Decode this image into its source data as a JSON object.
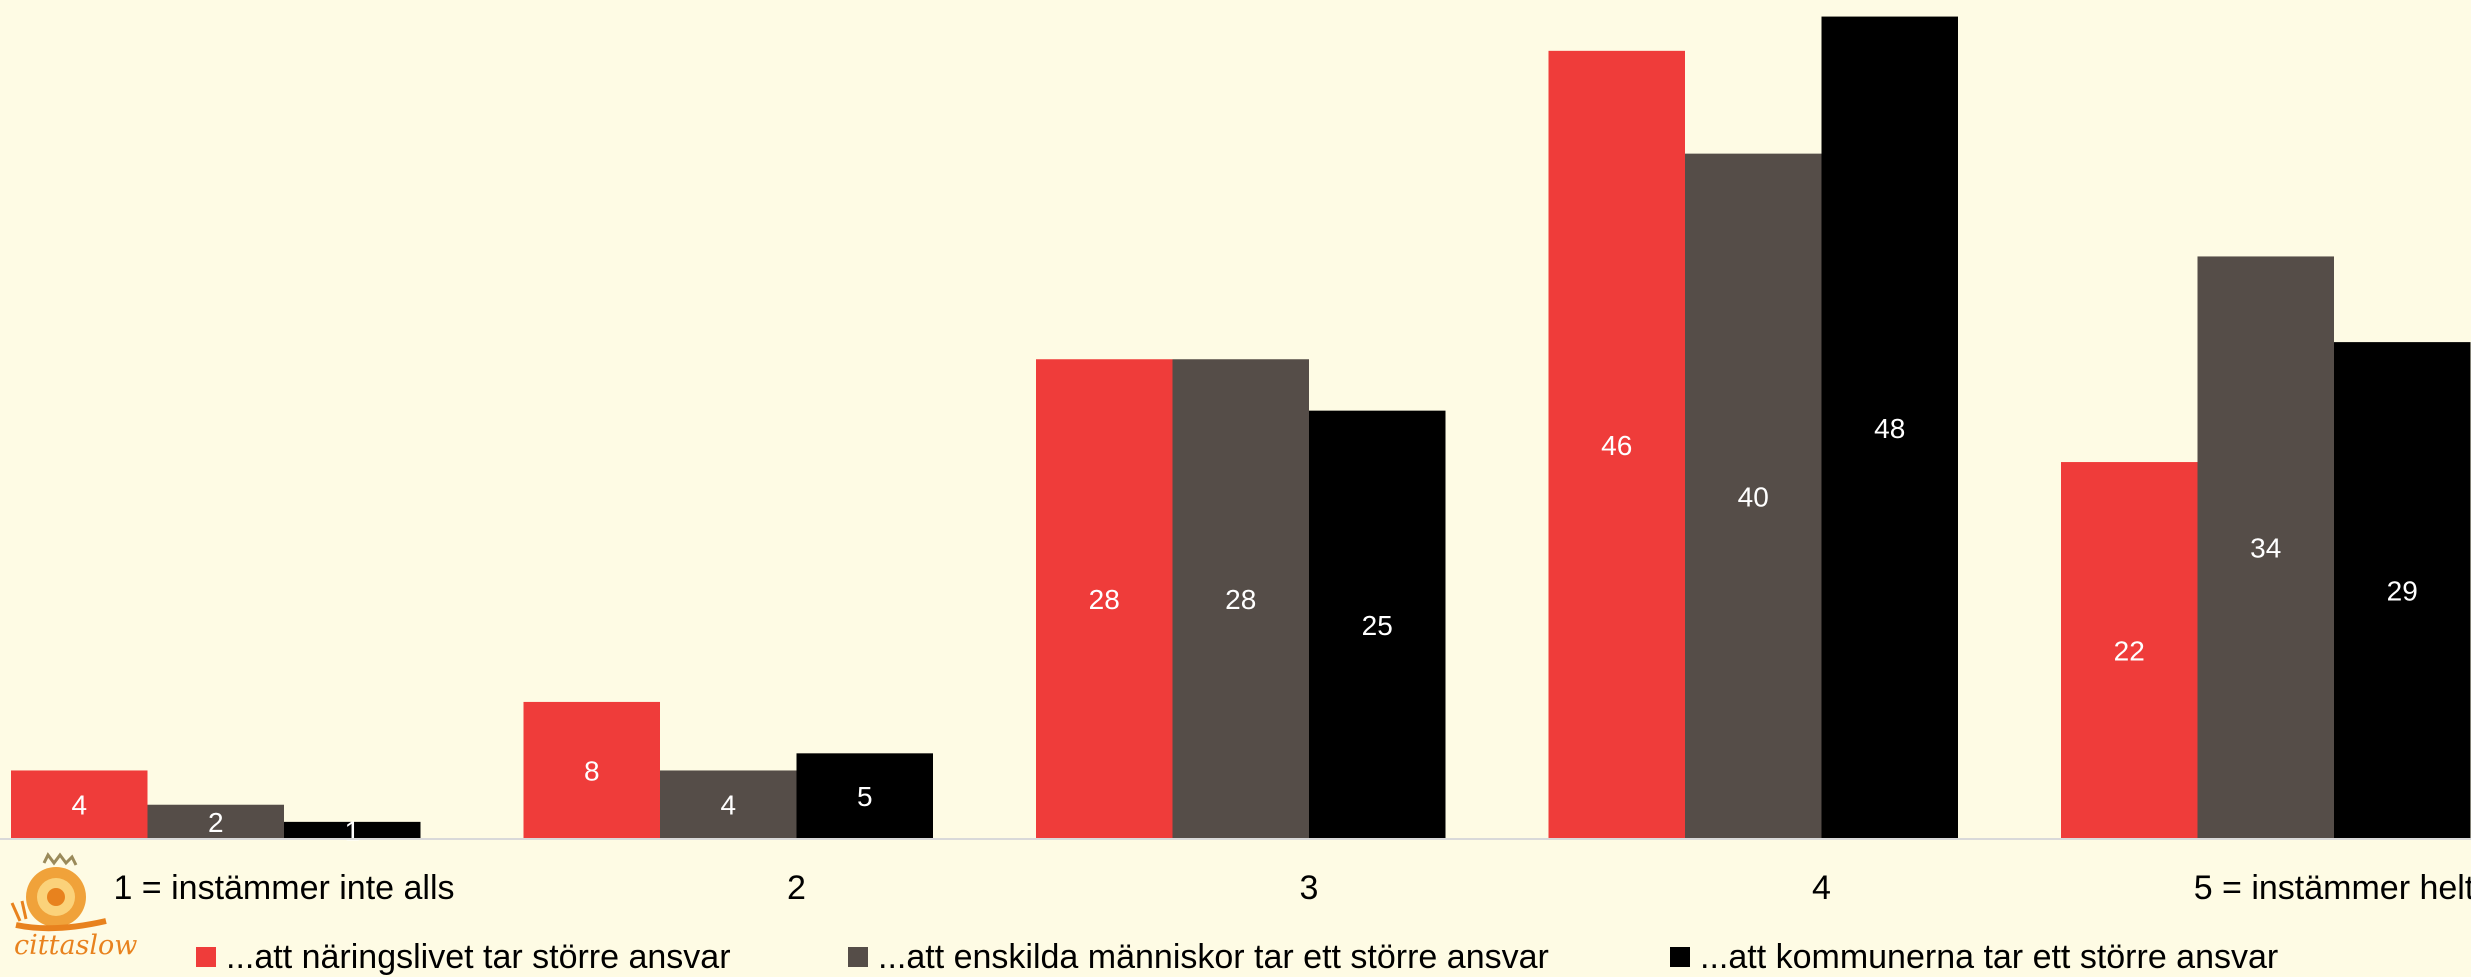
{
  "chart_data": {
    "type": "bar",
    "title": "",
    "xlabel": "",
    "ylabel": "",
    "categories": [
      "1 = instämmer inte alls",
      "2",
      "3",
      "4",
      "5 = instämmer helt"
    ],
    "series": [
      {
        "name": "...att näringslivet tar större ansvar",
        "color": "#ef3c3a",
        "values": [
          4,
          8,
          28,
          46,
          22
        ]
      },
      {
        "name": "...att enskilda människor tar ett större ansvar",
        "color": "#554d48",
        "values": [
          2,
          4,
          28,
          40,
          34
        ]
      },
      {
        "name": "...att kommunerna tar ett större ansvar",
        "color": "#000000",
        "values": [
          1,
          5,
          25,
          48,
          29
        ]
      }
    ],
    "ylim": [
      0,
      48.5
    ],
    "grid": false,
    "legend_position": "bottom",
    "data_labels": true
  },
  "logo": {
    "name": "cittaslow-logo",
    "text": "cittaslow"
  },
  "colors": {
    "background": "#fefbe4",
    "axis": "#d9d9d9"
  }
}
